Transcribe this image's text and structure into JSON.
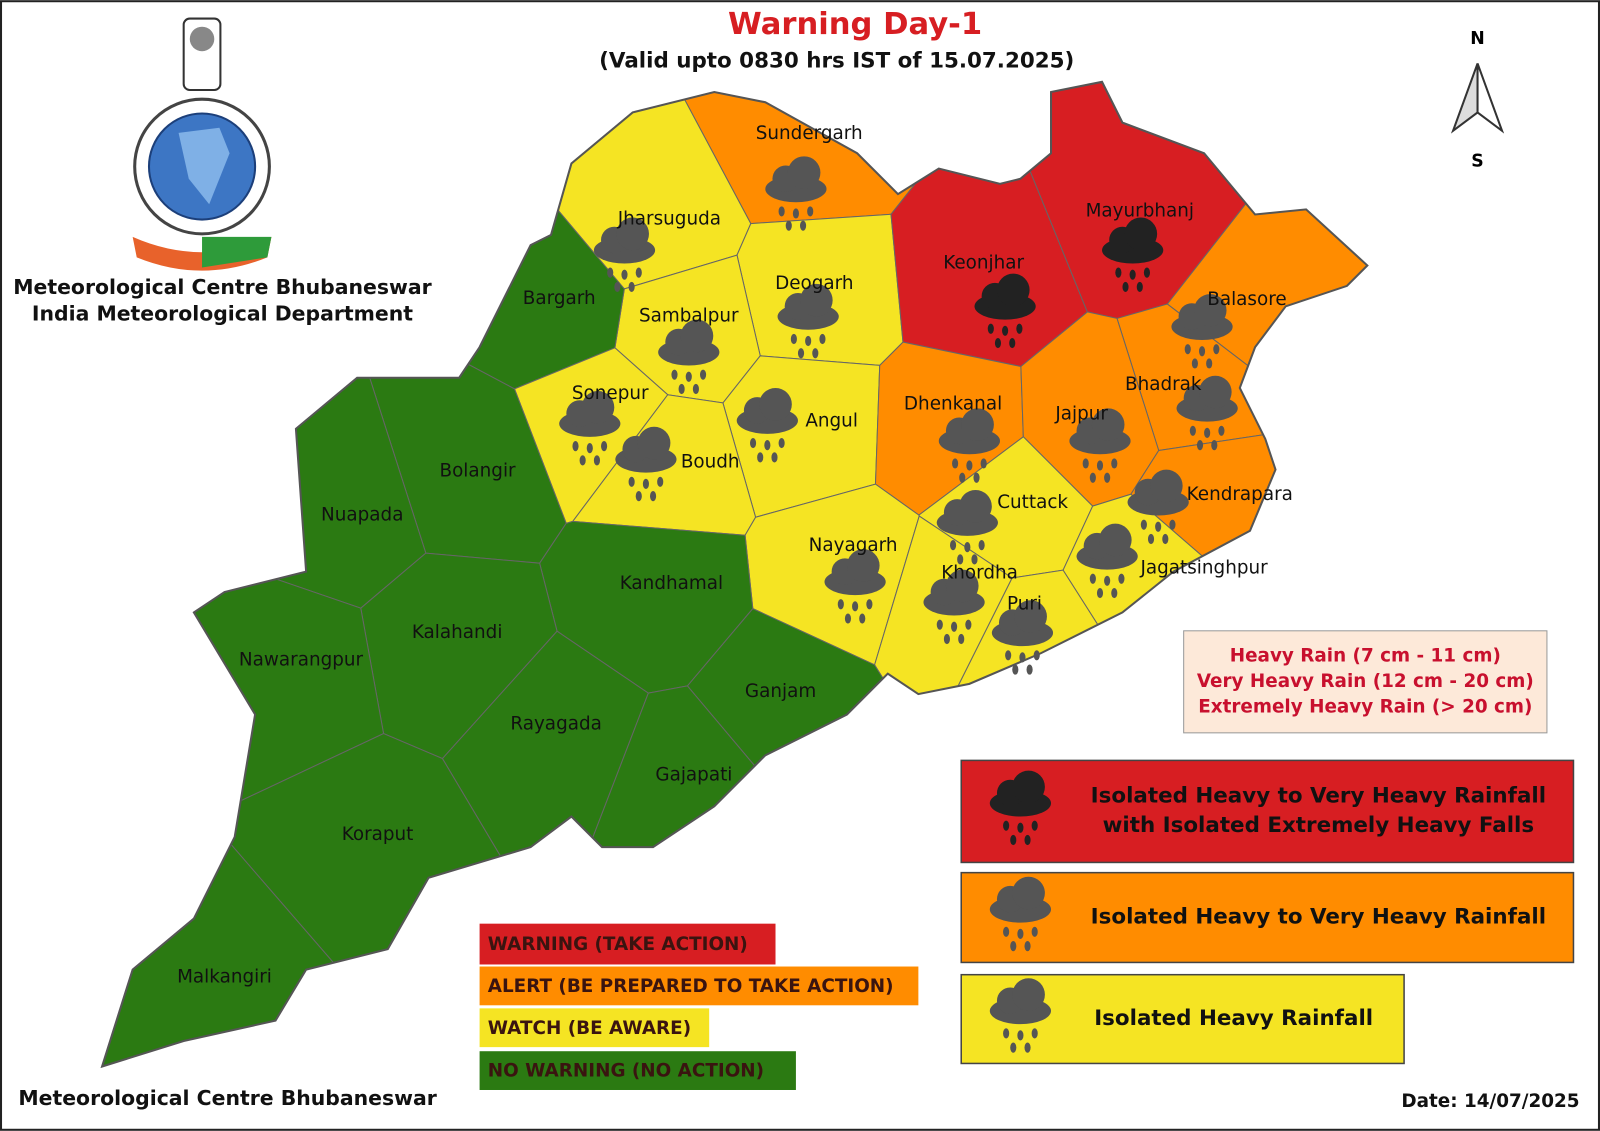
{
  "header": {
    "title": "Warning Day-1",
    "subtitle": "(Valid upto 0830 hrs IST of 15.07.2025)",
    "org_line1": "Meteorological Centre Bhubaneswar",
    "org_line2": "India Meteorological Department"
  },
  "compass": {
    "north": "N",
    "south": "S"
  },
  "districts": [
    {
      "name": "Sundergarh",
      "color": "#ff8c00"
    },
    {
      "name": "Jharsuguda",
      "color": "#f5e423"
    },
    {
      "name": "Deogarh",
      "color": "#f5e423"
    },
    {
      "name": "Sambalpur",
      "color": "#f5e423"
    },
    {
      "name": "Bargarh",
      "color": "#2b7a12"
    },
    {
      "name": "Keonjhar",
      "color": "#d71e22"
    },
    {
      "name": "Mayurbhanj",
      "color": "#d71e22"
    },
    {
      "name": "Balasore",
      "color": "#ff8c00"
    },
    {
      "name": "Bhadrak",
      "color": "#ff8c00"
    },
    {
      "name": "Sonepur",
      "color": "#f5e423"
    },
    {
      "name": "Angul",
      "color": "#f5e423"
    },
    {
      "name": "Boudh",
      "color": "#f5e423"
    },
    {
      "name": "Dhenkanal",
      "color": "#ff8c00"
    },
    {
      "name": "Jajpur",
      "color": "#ff8c00"
    },
    {
      "name": "Cuttack",
      "color": "#f5e423"
    },
    {
      "name": "Kendrapara",
      "color": "#ff8c00"
    },
    {
      "name": "Jagatsinghpur",
      "color": "#f5e423"
    },
    {
      "name": "Nayagarh",
      "color": "#f5e423"
    },
    {
      "name": "Khordha",
      "color": "#f5e423"
    },
    {
      "name": "Puri",
      "color": "#f5e423"
    },
    {
      "name": "Bolangir",
      "color": "#2b7a12"
    },
    {
      "name": "Nuapada",
      "color": "#2b7a12"
    },
    {
      "name": "Kandhamal",
      "color": "#2b7a12"
    },
    {
      "name": "Kalahandi",
      "color": "#2b7a12"
    },
    {
      "name": "Nawarangpur",
      "color": "#2b7a12"
    },
    {
      "name": "Ganjam",
      "color": "#2b7a12"
    },
    {
      "name": "Rayagada",
      "color": "#2b7a12"
    },
    {
      "name": "Gajapati",
      "color": "#2b7a12"
    },
    {
      "name": "Koraput",
      "color": "#2b7a12"
    },
    {
      "name": "Malkangiri",
      "color": "#2b7a12"
    }
  ],
  "thresholds": [
    "Heavy Rain (7 cm - 11 cm)",
    "Very Heavy Rain (12 cm - 20 cm)",
    "Extremely Heavy Rain (> 20 cm)"
  ],
  "rain_legend": [
    {
      "lines": [
        "Isolated Heavy to Very Heavy Rainfall",
        "with Isolated Extremely Heavy Falls"
      ],
      "color": "#d71e22"
    },
    {
      "lines": [
        "Isolated Heavy to Very Heavy Rainfall"
      ],
      "color": "#ff8c00"
    },
    {
      "lines": [
        "Isolated Heavy Rainfall"
      ],
      "color": "#f5e423"
    }
  ],
  "levels": [
    {
      "name": "WARNING (TAKE ACTION)",
      "color": "#d71e22"
    },
    {
      "name": "ALERT (BE PREPARED TO TAKE ACTION)",
      "color": "#ff8c00"
    },
    {
      "name": "WATCH (BE AWARE)",
      "color": "#f5e423"
    },
    {
      "name": "NO WARNING (NO ACTION)",
      "color": "#2b7a12"
    }
  ],
  "footer": {
    "left": "Meteorological Centre Bhubaneswar",
    "date": "Date: 14/07/2025"
  }
}
